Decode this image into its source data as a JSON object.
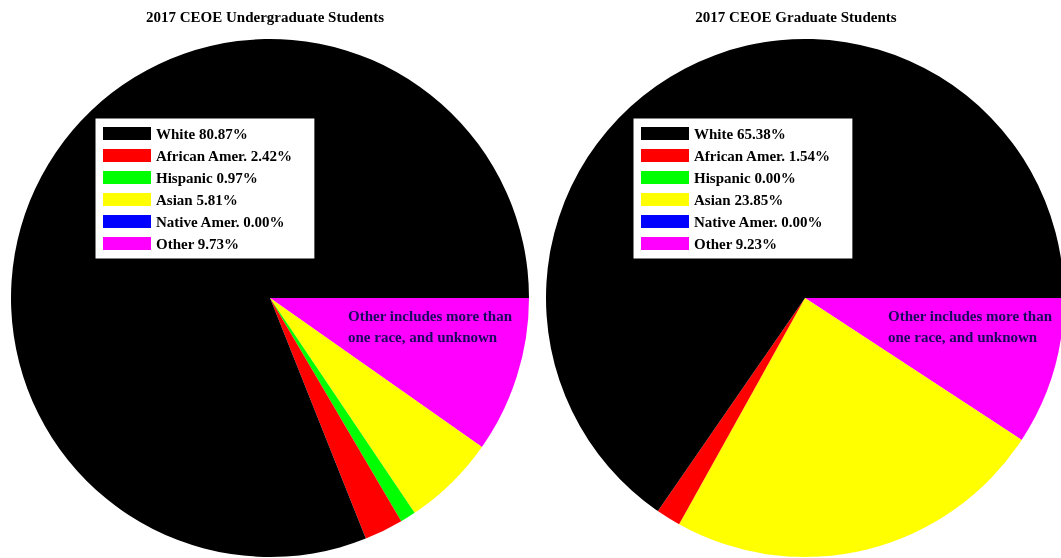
{
  "chart_data": [
    {
      "type": "pie",
      "title": "2017 CEOE Undergraduate Students",
      "categories": [
        "White 80.87%",
        "African Amer. 2.42%",
        "Hispanic 0.97%",
        "Asian 5.81%",
        "Native Amer. 0.00%",
        "Other 9.73%"
      ],
      "values": [
        80.87,
        2.42,
        0.97,
        5.81,
        0.0,
        9.73
      ],
      "colors": [
        "#000000",
        "#ff0000",
        "#00ff00",
        "#ffff00",
        "#0000ff",
        "#ff00ff"
      ],
      "legend": "top left",
      "annotations": [
        "Other includes more than one race, and unknown"
      ]
    },
    {
      "type": "pie",
      "title": "2017 CEOE Graduate Students",
      "categories": [
        "White 65.38%",
        "African Amer. 1.54%",
        "Hispanic 0.00%",
        "Asian 23.85%",
        "Native Amer. 0.00%",
        "Other 9.23%"
      ],
      "values": [
        65.38,
        1.54,
        0.0,
        23.85,
        0.0,
        9.23
      ],
      "colors": [
        "#000000",
        "#ff0000",
        "#00ff00",
        "#ffff00",
        "#0000ff",
        "#ff00ff"
      ],
      "legend": "top left",
      "annotations": [
        "Other includes more than one race, and unknown"
      ]
    }
  ]
}
